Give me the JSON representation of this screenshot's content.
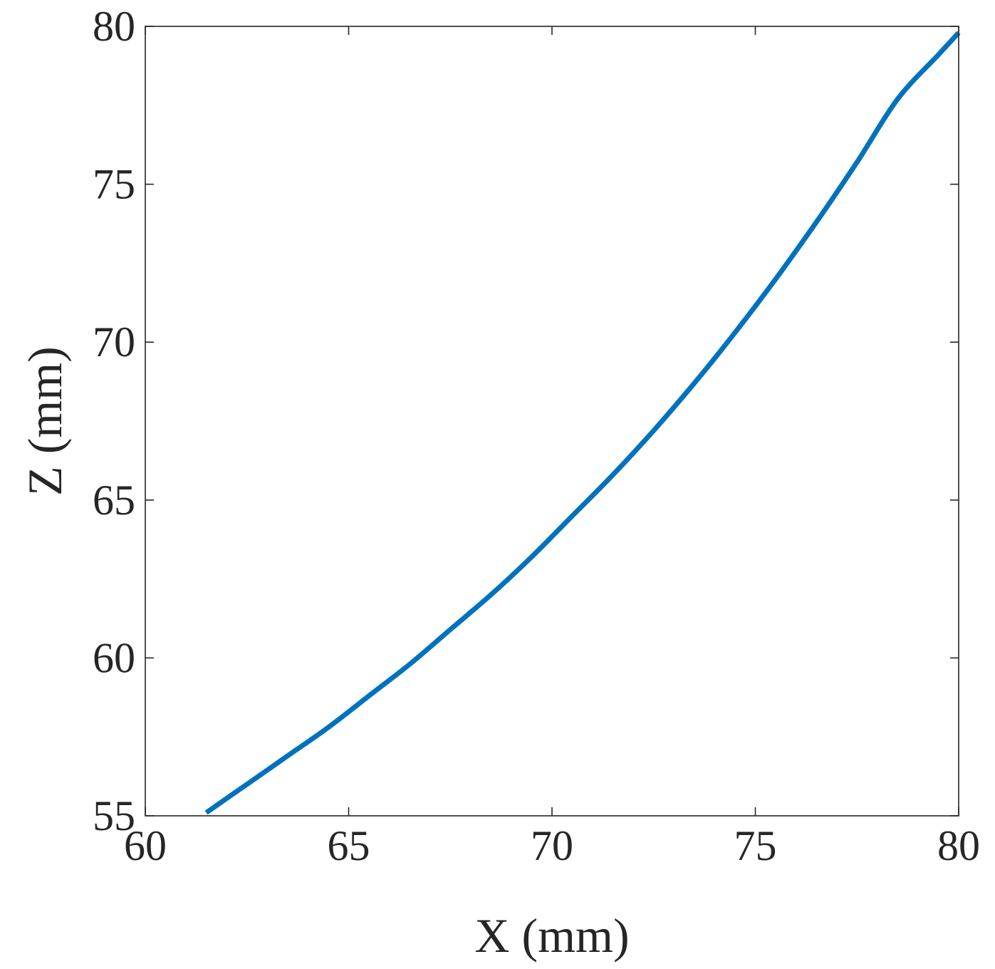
{
  "chart_data": {
    "type": "line",
    "title": "",
    "xlabel": "X (mm)",
    "ylabel": "Z (mm)",
    "xlim": [
      60,
      80
    ],
    "ylim": [
      55,
      80
    ],
    "xticks": [
      60,
      65,
      70,
      75,
      80
    ],
    "yticks": [
      55,
      60,
      65,
      70,
      75,
      80
    ],
    "xtick_labels": [
      "60",
      "65",
      "70",
      "75",
      "80"
    ],
    "ytick_labels": [
      "55",
      "60",
      "65",
      "70",
      "75",
      "80"
    ],
    "grid": false,
    "box": true,
    "series": [
      {
        "color": "#0072BD",
        "x": [
          61.5,
          62.5,
          63.5,
          64.5,
          65.5,
          66.5,
          67.5,
          68.5,
          69.5,
          70.5,
          71.5,
          72.5,
          73.5,
          74.5,
          75.5,
          76.5,
          77.5,
          78.5,
          79.5,
          80.0
        ],
        "y": [
          55.1,
          56.0,
          56.9,
          57.8,
          58.8,
          59.8,
          60.9,
          62.0,
          63.2,
          64.5,
          65.8,
          67.2,
          68.7,
          70.3,
          72.0,
          73.8,
          75.7,
          77.7,
          79.1,
          79.8
        ]
      }
    ]
  }
}
